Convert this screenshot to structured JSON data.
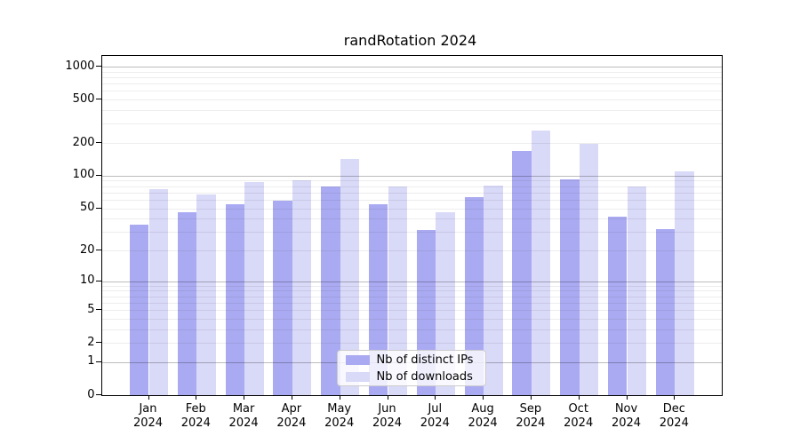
{
  "title": "randRotation 2024",
  "chart_data": {
    "type": "bar",
    "title": "randRotation 2024",
    "categories": [
      "Jan",
      "Feb",
      "Mar",
      "Apr",
      "May",
      "Jun",
      "Jul",
      "Aug",
      "Sep",
      "Oct",
      "Nov",
      "Dec"
    ],
    "year": "2024",
    "series": [
      {
        "name": "Nb of distinct IPs",
        "color": "#aaaaf2",
        "values": [
          35,
          46,
          54,
          59,
          80,
          54,
          31,
          64,
          170,
          92,
          42,
          32
        ]
      },
      {
        "name": "Nb of downloads",
        "color": "#d9d9f8",
        "values": [
          75,
          67,
          88,
          90,
          144,
          80,
          46,
          81,
          258,
          198,
          79,
          109
        ]
      }
    ],
    "ylabel": "",
    "xlabel": "",
    "yticks": [
      0,
      1,
      2,
      5,
      10,
      20,
      50,
      100,
      200,
      500,
      1000
    ],
    "scale": "log1p",
    "ylim": [
      0,
      1250
    ],
    "grid": true,
    "legend_position": "bottom-center"
  },
  "colors": {
    "bar_distinct_ips": "#aaaaf2",
    "bar_downloads": "#d9d9f8",
    "axis": "#000000",
    "major_grid": "rgba(0,0,0,0.26)",
    "minor_grid": "rgba(0,0,0,0.07)",
    "background": "#ffffff"
  }
}
